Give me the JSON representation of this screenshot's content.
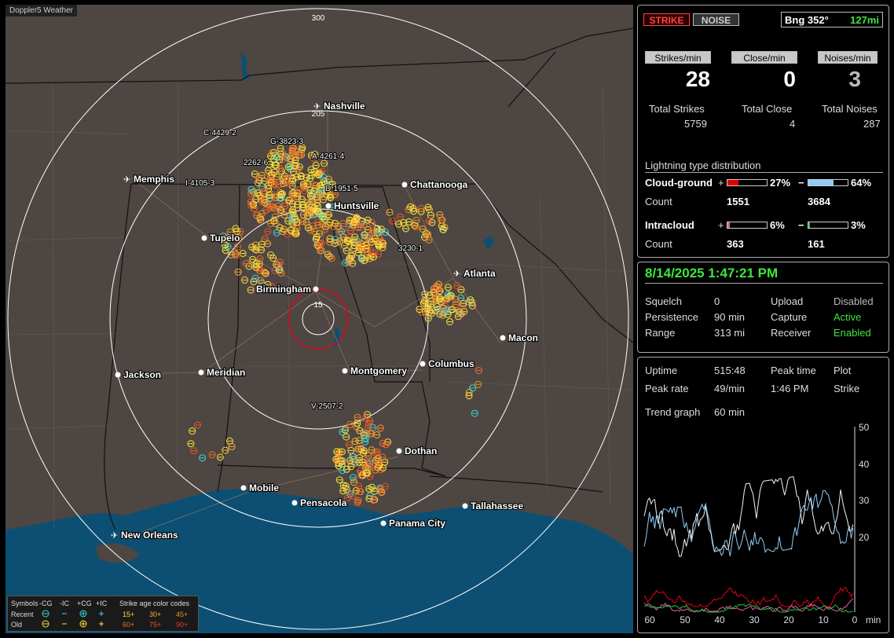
{
  "map": {
    "title": "Doppler5 Weather",
    "range_labels": [
      "300",
      "205",
      "15"
    ],
    "cities": [
      {
        "name": "Nashville",
        "airport": true
      },
      {
        "name": "Memphis",
        "airport": true
      },
      {
        "name": "Chattanooga",
        "airport": false
      },
      {
        "name": "Huntsville",
        "airport": false
      },
      {
        "name": "Tupelo",
        "airport": false
      },
      {
        "name": "Atlanta",
        "airport": true
      },
      {
        "name": "Birmingham",
        "airport": false
      },
      {
        "name": "Macon",
        "airport": false
      },
      {
        "name": "Jackson",
        "airport": false
      },
      {
        "name": "Meridian",
        "airport": false
      },
      {
        "name": "Montgomery",
        "airport": false
      },
      {
        "name": "Columbus",
        "airport": false
      },
      {
        "name": "Dothan",
        "airport": false
      },
      {
        "name": "Mobile",
        "airport": false
      },
      {
        "name": "Pensacola",
        "airport": false
      },
      {
        "name": "Tallahassee",
        "airport": false
      },
      {
        "name": "Panama City",
        "airport": false
      },
      {
        "name": "New Orleans",
        "airport": true
      }
    ],
    "storm_labels": [
      "C-4429-2",
      "G-3823-3",
      "A-4261-4",
      "I-4105-3",
      "D-1951-5",
      "3230-1",
      "V-2507-2",
      "2262-6"
    ],
    "legend": {
      "symbols_label": "Symbols",
      "cols": [
        "-CG",
        "-IC",
        "+CG",
        "+IC"
      ],
      "recent_label": "Recent",
      "old_label": "Old",
      "age_label": "Strike age color codes",
      "recent_ages": [
        "15+",
        "30+",
        "45+"
      ],
      "old_ages": [
        "60+",
        "75+",
        "90+"
      ]
    }
  },
  "status": {
    "strike_tab": "STRIKE",
    "noise_tab": "NOISE",
    "bearing": "Bng 352°",
    "distance": "127mi",
    "rates": [
      {
        "header": "Strikes/min",
        "value": "28",
        "total_label": "Total Strikes",
        "total": "5759"
      },
      {
        "header": "Close/min",
        "value": "0",
        "total_label": "Total Close",
        "total": "4"
      },
      {
        "header": "Noises/min",
        "value": "3",
        "total_label": "Total Noises",
        "total": "287"
      }
    ],
    "distribution_title": "Lightning type distribution",
    "cloud_ground": {
      "label": "Cloud-ground",
      "pos_pct": "27%",
      "neg_pct": "64%",
      "pos_fraction": 0.27,
      "neg_fraction": 0.64,
      "count_label": "Count",
      "pos_count": "1551",
      "neg_count": "3684"
    },
    "intracloud": {
      "label": "Intracloud",
      "pos_pct": "6%",
      "neg_pct": "3%",
      "pos_fraction": 0.06,
      "neg_fraction": 0.03,
      "count_label": "Count",
      "pos_count": "363",
      "neg_count": "161"
    },
    "plus": "+",
    "minus": "−"
  },
  "settings": {
    "datetime": "8/14/2025 1:47:21 PM",
    "rows": [
      {
        "label": "Squelch",
        "value": "0",
        "label2": "Upload",
        "value2": "Disabled"
      },
      {
        "label": "Persistence",
        "value": "90 min",
        "label2": "Capture",
        "value2": "Active"
      },
      {
        "label": "Range",
        "value": "313 mi",
        "label2": "Receiver",
        "value2": "Enabled"
      }
    ]
  },
  "trend": {
    "uptime_label": "Uptime",
    "uptime": "515:48",
    "peak_time_label": "Peak time",
    "plot_label": "Plot",
    "peak_rate_label": "Peak rate",
    "peak_rate": "49/min",
    "peak_time": "1:46 PM",
    "plot_value": "Strike",
    "trend_label": "Trend graph",
    "trend_value": "60 min",
    "y_ticks": [
      "50",
      "40",
      "30",
      "20"
    ],
    "x_ticks": [
      "60",
      "50",
      "40",
      "30",
      "20",
      "10",
      "0"
    ],
    "x_unit": "min"
  },
  "colors": {
    "map_bg": "#4e4642",
    "water": "#0d4f73",
    "accent_green": "#3ee63e",
    "strike_red": "#e8001c",
    "cg_pos_bar": "#e00000",
    "cg_neg_bar": "#8fcdf5",
    "ic_pos_bar": "#e85fa0",
    "ic_neg_bar": "#29c24a"
  }
}
